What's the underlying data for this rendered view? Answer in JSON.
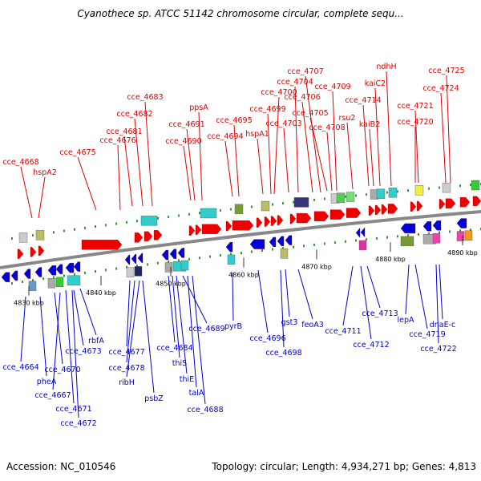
{
  "title": "Cyanothece sp. ATCC 51142 chromosome circular, complete sequ...",
  "footer": {
    "accession": "Accession: NC_010546",
    "summary": "Topology: circular; Length: 4,934,271 bp; Genes: 4,813"
  },
  "colors": {
    "label_top": "#dd0000",
    "label_bottom": "#0000cc",
    "feature_top": "#ee0000",
    "feature_bottom": "#0000dd",
    "backbone": "#888888",
    "tick": "#339933"
  },
  "ruler": [
    "4830 kbp",
    "4840 kbp",
    "4850 kbp",
    "4860 kbp",
    "4870 kbp",
    "4880 kbp",
    "4890 kbp"
  ],
  "top_genes": [
    {
      "label": "cce_4668"
    },
    {
      "label": "hspA2"
    },
    {
      "label": "cce_4675"
    },
    {
      "label": "cce_4676"
    },
    {
      "label": "cce_4681"
    },
    {
      "label": "cce_4682"
    },
    {
      "label": "cce_4683"
    },
    {
      "label": "cce_4690"
    },
    {
      "label": "cce_4691"
    },
    {
      "label": "ppsA"
    },
    {
      "label": "cce_4694"
    },
    {
      "label": "cce_4695"
    },
    {
      "label": "hspA1"
    },
    {
      "label": "cce_4699"
    },
    {
      "label": "cce_4700"
    },
    {
      "label": "cce_4703"
    },
    {
      "label": "cce_4704"
    },
    {
      "label": "cce_4706"
    },
    {
      "label": "cce_4707"
    },
    {
      "label": "cce_4705"
    },
    {
      "label": "cce_4708"
    },
    {
      "label": "cce_4709"
    },
    {
      "label": "rsu2"
    },
    {
      "label": "cce_4714"
    },
    {
      "label": "kaiB2"
    },
    {
      "label": "kaiC2"
    },
    {
      "label": "ndhH"
    },
    {
      "label": "cce_4721"
    },
    {
      "label": "cce_4720"
    },
    {
      "label": "cce_4724"
    },
    {
      "label": "cce_4725"
    }
  ],
  "bottom_genes": [
    {
      "label": "cce_4664"
    },
    {
      "label": "pheA"
    },
    {
      "label": "cce_4670"
    },
    {
      "label": "cce_4667"
    },
    {
      "label": "cce_4671"
    },
    {
      "label": "cce_4672"
    },
    {
      "label": "cce_4673"
    },
    {
      "label": "rbfA"
    },
    {
      "label": "cce_4677"
    },
    {
      "label": "cce_4678"
    },
    {
      "label": "ribH"
    },
    {
      "label": "psbZ"
    },
    {
      "label": "cce_4684"
    },
    {
      "label": "thiS"
    },
    {
      "label": "thiE"
    },
    {
      "label": "cce_4689"
    },
    {
      "label": "talA"
    },
    {
      "label": "cce_4688"
    },
    {
      "label": "pyrB"
    },
    {
      "label": "cce_4696"
    },
    {
      "label": "cce_4698"
    },
    {
      "label": "gst3"
    },
    {
      "label": "feoA3"
    },
    {
      "label": "cce_4711"
    },
    {
      "label": "cce_4712"
    },
    {
      "label": "cce_4713"
    },
    {
      "label": "lepA"
    },
    {
      "label": "cce_4719"
    },
    {
      "label": "cce_4722"
    },
    {
      "label": "dnaE-c"
    }
  ]
}
